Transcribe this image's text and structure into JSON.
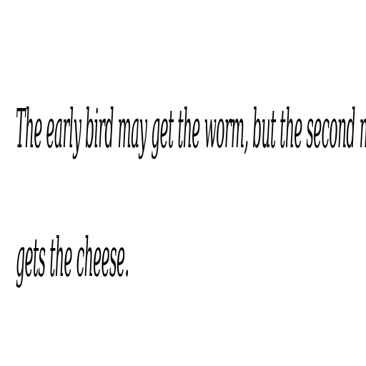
{
  "document": {
    "lines": [
      "The early bird may get the worm, but the second mouse",
      "gets the cheese."
    ]
  }
}
